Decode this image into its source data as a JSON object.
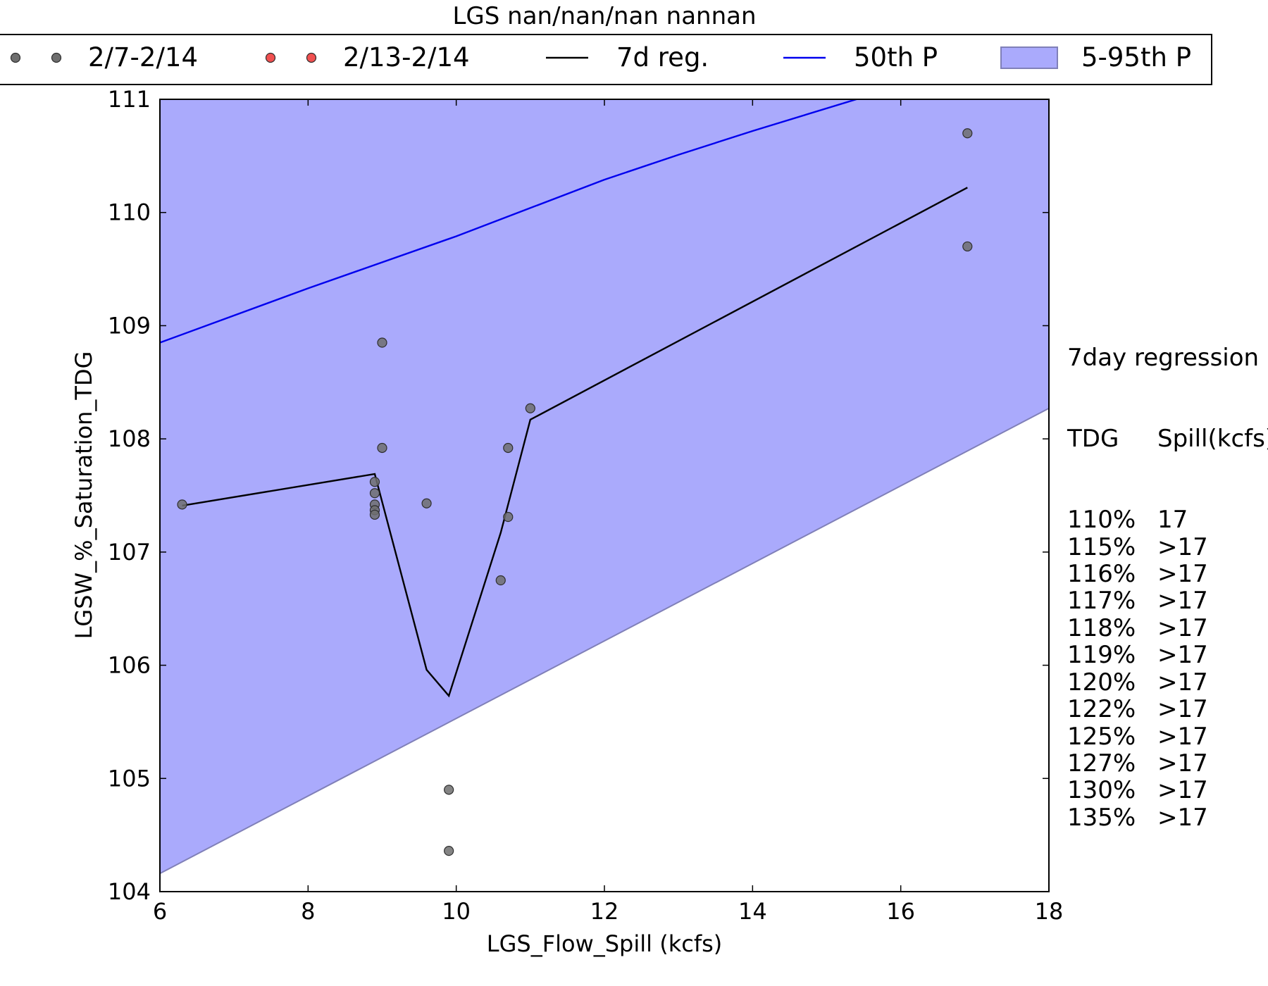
{
  "chart_data": {
    "type": "scatter",
    "title": "LGS nan/nan/nan nannan",
    "xlabel": "LGS_Flow_Spill (kcfs)",
    "ylabel": "LGSW_%_Saturation_TDG",
    "xlim": [
      6,
      18
    ],
    "ylim": [
      104,
      111
    ],
    "xticks": [
      6,
      8,
      10,
      12,
      14,
      16,
      18
    ],
    "yticks": [
      104,
      105,
      106,
      107,
      108,
      109,
      110,
      111
    ],
    "grid": false,
    "legend_position": "top, above plot",
    "series": [
      {
        "name": "2/7-2/14",
        "kind": "scatter",
        "color": "#6e6e6e",
        "points": [
          [
            6.3,
            107.42
          ],
          [
            8.9,
            107.62
          ],
          [
            8.9,
            107.52
          ],
          [
            8.9,
            107.42
          ],
          [
            8.9,
            107.37
          ],
          [
            8.9,
            107.33
          ],
          [
            9.0,
            108.85
          ],
          [
            9.0,
            107.92
          ],
          [
            9.6,
            107.43
          ],
          [
            9.9,
            104.9
          ],
          [
            9.9,
            104.36
          ],
          [
            10.6,
            106.75
          ],
          [
            10.7,
            107.92
          ],
          [
            10.7,
            107.31
          ],
          [
            11.0,
            108.27
          ],
          [
            16.9,
            110.7
          ],
          [
            16.9,
            109.7
          ]
        ]
      },
      {
        "name": "2/13-2/14",
        "kind": "scatter",
        "color": "#f05050",
        "points": []
      },
      {
        "name": "7d reg.",
        "kind": "line",
        "color": "#000000",
        "points": [
          [
            6.3,
            107.41
          ],
          [
            8.9,
            107.69
          ],
          [
            9.6,
            105.96
          ],
          [
            9.9,
            105.73
          ],
          [
            10.6,
            107.17
          ],
          [
            11.0,
            108.17
          ],
          [
            16.9,
            110.22
          ]
        ]
      },
      {
        "name": "50th P",
        "kind": "line",
        "color": "#0000ee",
        "points": [
          [
            6,
            108.85
          ],
          [
            8,
            109.33
          ],
          [
            10,
            109.79
          ],
          [
            11,
            110.04
          ],
          [
            12,
            110.29
          ],
          [
            13,
            110.51
          ],
          [
            14,
            110.72
          ],
          [
            15.5,
            111.02
          ]
        ]
      },
      {
        "name": "5-95th P",
        "kind": "band",
        "color": "#aaaafc",
        "lower": [
          [
            6,
            104.16
          ],
          [
            18,
            108.27
          ]
        ],
        "upper": [
          [
            6,
            111
          ],
          [
            18,
            111
          ]
        ]
      }
    ],
    "side_table": {
      "title": "7day regression",
      "headers": [
        "TDG",
        "Spill(kcfs)"
      ],
      "rows": [
        [
          "110%",
          "17"
        ],
        [
          "115%",
          ">17"
        ],
        [
          "116%",
          ">17"
        ],
        [
          "117%",
          ">17"
        ],
        [
          "118%",
          ">17"
        ],
        [
          "119%",
          ">17"
        ],
        [
          "120%",
          ">17"
        ],
        [
          "122%",
          ">17"
        ],
        [
          "125%",
          ">17"
        ],
        [
          "127%",
          ">17"
        ],
        [
          "130%",
          ">17"
        ],
        [
          "135%",
          ">17"
        ]
      ]
    }
  }
}
